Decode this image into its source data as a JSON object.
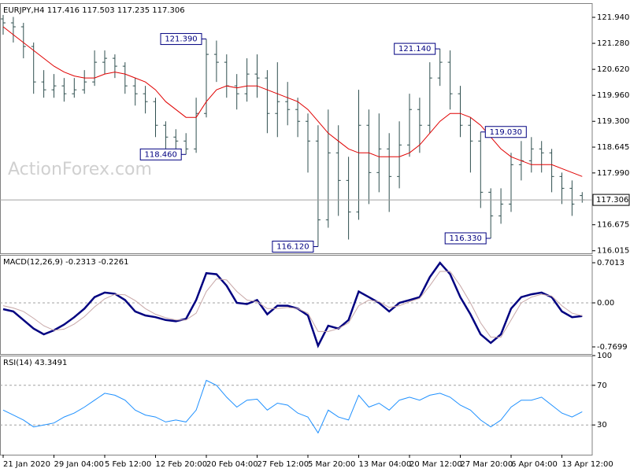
{
  "chart_data": [
    {
      "type": "ohlc",
      "title": "EURJPY,H4 117.416 117.503 117.235 117.306",
      "watermark": "ActionForex.com",
      "color": "#2f4f4f",
      "open": [
        121.9,
        121.8,
        121.7,
        121.2,
        120.3,
        120.1,
        120.2,
        120.0,
        120.1,
        120.3,
        120.8,
        120.9,
        120.7,
        120.2,
        120.0,
        119.8,
        119.2,
        118.9,
        118.8,
        118.6,
        119.5,
        121.0,
        120.8,
        120.2,
        120.0,
        120.5,
        120.4,
        119.5,
        119.8,
        119.6,
        119.3,
        118.8,
        116.8,
        118.5,
        117.8,
        117.0,
        119.2,
        118.0,
        118.6,
        117.9,
        118.7,
        119.6,
        119.2,
        120.4,
        120.8,
        120.0,
        119.2,
        118.8,
        117.5,
        116.9,
        117.2,
        118.2,
        118.3,
        118.6,
        118.5,
        117.9,
        117.6,
        117.416
      ],
      "high": [
        122.0,
        121.95,
        121.8,
        121.3,
        120.6,
        120.5,
        120.4,
        120.4,
        120.6,
        121.1,
        121.1,
        121.0,
        120.8,
        120.4,
        120.2,
        119.9,
        119.3,
        119.1,
        119.0,
        119.9,
        121.39,
        121.35,
        121.0,
        120.5,
        120.9,
        121.0,
        120.6,
        120.8,
        120.3,
        119.9,
        119.5,
        119.2,
        119.6,
        119.2,
        118.4,
        120.1,
        119.6,
        119.5,
        119.0,
        119.3,
        120.0,
        119.9,
        120.8,
        121.14,
        121.1,
        120.2,
        119.4,
        119.03,
        117.6,
        117.6,
        118.5,
        118.8,
        118.9,
        118.8,
        118.6,
        118.0,
        117.8,
        117.503
      ],
      "low": [
        121.5,
        121.3,
        120.9,
        120.0,
        119.9,
        119.9,
        119.8,
        119.9,
        120.0,
        120.2,
        120.5,
        120.4,
        120.0,
        119.7,
        119.5,
        118.9,
        118.6,
        118.5,
        118.46,
        118.5,
        119.4,
        120.3,
        119.9,
        119.6,
        119.8,
        119.9,
        119.0,
        118.9,
        119.2,
        118.9,
        118.0,
        116.12,
        116.6,
        116.9,
        116.3,
        116.8,
        117.2,
        117.5,
        117.0,
        117.6,
        118.4,
        118.5,
        119.0,
        120.2,
        119.6,
        118.9,
        118.0,
        117.1,
        116.33,
        116.7,
        117.0,
        117.8,
        118.0,
        118.0,
        117.5,
        117.2,
        116.9,
        117.235
      ],
      "close": [
        121.8,
        121.7,
        121.2,
        120.3,
        120.1,
        120.2,
        120.0,
        120.1,
        120.3,
        120.8,
        120.9,
        120.7,
        120.2,
        120.0,
        119.8,
        119.2,
        118.9,
        118.8,
        118.6,
        119.5,
        121.0,
        120.8,
        120.2,
        120.0,
        120.5,
        120.4,
        119.5,
        119.8,
        119.6,
        119.3,
        118.8,
        116.8,
        118.5,
        117.8,
        117.0,
        119.2,
        118.0,
        118.6,
        117.9,
        118.7,
        119.6,
        119.2,
        120.4,
        120.8,
        120.0,
        119.2,
        118.8,
        117.5,
        116.9,
        117.2,
        118.2,
        118.3,
        118.6,
        118.5,
        117.9,
        117.6,
        117.2,
        117.306
      ],
      "ma": {
        "color": "#e00000",
        "values": [
          121.7,
          121.5,
          121.3,
          121.1,
          120.9,
          120.7,
          120.55,
          120.45,
          120.4,
          120.4,
          120.5,
          120.55,
          120.5,
          120.4,
          120.3,
          120.1,
          119.8,
          119.6,
          119.4,
          119.4,
          119.8,
          120.1,
          120.2,
          120.15,
          120.2,
          120.2,
          120.1,
          120.0,
          119.9,
          119.8,
          119.6,
          119.3,
          119.0,
          118.8,
          118.6,
          118.5,
          118.5,
          118.4,
          118.4,
          118.4,
          118.5,
          118.7,
          119.0,
          119.3,
          119.5,
          119.5,
          119.4,
          119.2,
          118.9,
          118.6,
          118.4,
          118.3,
          118.2,
          118.2,
          118.2,
          118.1,
          118.0,
          117.9
        ]
      },
      "last_price": {
        "value": 117.306,
        "label": "117.306"
      },
      "annotations": [
        {
          "bar": 20,
          "value": 121.39,
          "label": "121.390",
          "side": "left"
        },
        {
          "bar": 18,
          "value": 118.46,
          "label": "118.460",
          "side": "left"
        },
        {
          "bar": 31,
          "value": 116.12,
          "label": "116.120",
          "side": "left"
        },
        {
          "bar": 43,
          "value": 121.14,
          "label": "121.140",
          "side": "left"
        },
        {
          "bar": 47,
          "value": 119.03,
          "label": "119.030",
          "side": "right"
        },
        {
          "bar": 48,
          "value": 116.33,
          "label": "116.330",
          "side": "left"
        }
      ],
      "ylim": [
        115.95,
        122.3
      ],
      "yticks": [
        {
          "value": 121.94,
          "label": "121.940"
        },
        {
          "value": 121.28,
          "label": "121.280"
        },
        {
          "value": 120.62,
          "label": "120.620"
        },
        {
          "value": 119.96,
          "label": "119.960"
        },
        {
          "value": 119.3,
          "label": "119.300"
        },
        {
          "value": 118.645,
          "label": "118.645"
        },
        {
          "value": 117.99,
          "label": "117.990"
        },
        {
          "value": 116.675,
          "label": "116.675"
        },
        {
          "value": 116.015,
          "label": "116.015"
        }
      ],
      "grid": false
    },
    {
      "type": "line",
      "title": "MACD(12,26,9) -0.2313 -0.2261",
      "series": [
        {
          "color": "#000080",
          "width": 2.5,
          "values": [
            -0.11,
            -0.15,
            -0.3,
            -0.45,
            -0.55,
            -0.48,
            -0.38,
            -0.25,
            -0.1,
            0.1,
            0.18,
            0.16,
            0.05,
            -0.15,
            -0.22,
            -0.25,
            -0.3,
            -0.32,
            -0.28,
            0.05,
            0.52,
            0.5,
            0.3,
            0.0,
            -0.02,
            0.05,
            -0.2,
            -0.05,
            -0.05,
            -0.1,
            -0.22,
            -0.75,
            -0.4,
            -0.45,
            -0.3,
            0.2,
            0.1,
            0.0,
            -0.15,
            0.0,
            0.05,
            0.1,
            0.45,
            0.7,
            0.5,
            0.1,
            -0.2,
            -0.55,
            -0.7,
            -0.55,
            -0.1,
            0.1,
            0.15,
            0.18,
            0.1,
            -0.15,
            -0.25,
            -0.2313
          ]
        },
        {
          "color": "#c8a8a8",
          "width": 1,
          "values": [
            -0.05,
            -0.09,
            -0.15,
            -0.27,
            -0.4,
            -0.48,
            -0.46,
            -0.37,
            -0.24,
            -0.07,
            0.07,
            0.15,
            0.14,
            0.04,
            -0.1,
            -0.2,
            -0.26,
            -0.3,
            -0.3,
            -0.18,
            0.2,
            0.42,
            0.4,
            0.2,
            0.05,
            0.02,
            -0.1,
            -0.1,
            -0.08,
            -0.1,
            -0.18,
            -0.5,
            -0.5,
            -0.45,
            -0.35,
            -0.05,
            0.05,
            0.02,
            -0.08,
            -0.05,
            0.02,
            0.08,
            0.3,
            0.55,
            0.55,
            0.3,
            0.0,
            -0.35,
            -0.6,
            -0.6,
            -0.3,
            0.0,
            0.1,
            0.15,
            0.12,
            -0.05,
            -0.18,
            -0.2261
          ]
        }
      ],
      "ylim": [
        -0.894,
        0.839
      ],
      "yticks": [
        0.7013,
        {
          "value": 0,
          "label": "0.00"
        },
        -0.7699
      ],
      "grid": "dashed"
    },
    {
      "type": "line",
      "title": "RSI(14) 43.3491",
      "series": [
        {
          "color": "#1e90ff",
          "width": 1,
          "values": [
            45,
            40,
            35,
            28,
            30,
            32,
            38,
            42,
            48,
            55,
            62,
            60,
            55,
            45,
            40,
            38,
            33,
            35,
            33,
            45,
            75,
            70,
            58,
            48,
            55,
            56,
            45,
            52,
            50,
            42,
            38,
            22,
            45,
            38,
            35,
            60,
            48,
            52,
            45,
            55,
            58,
            55,
            60,
            62,
            58,
            50,
            45,
            35,
            28,
            35,
            48,
            55,
            55,
            58,
            50,
            42,
            38,
            43.3491
          ]
        }
      ],
      "ylim": [
        0,
        100
      ],
      "yticks": [
        100,
        70,
        30
      ],
      "grid": "dashed",
      "categories": [
        "21 Jan 2020",
        null,
        null,
        null,
        null,
        "29 Jan 04:00",
        null,
        null,
        null,
        null,
        "5 Feb 12:00",
        null,
        null,
        null,
        null,
        "12 Feb 20:00",
        null,
        null,
        null,
        null,
        "20 Feb 04:00",
        null,
        null,
        null,
        null,
        "27 Feb 12:00",
        null,
        null,
        null,
        null,
        "5 Mar 20:00",
        null,
        null,
        null,
        null,
        "13 Mar 04:00",
        null,
        null,
        null,
        null,
        "20 Mar 12:00",
        null,
        null,
        null,
        null,
        "27 Mar 20:00",
        null,
        null,
        null,
        null,
        "6 Apr 04:00",
        null,
        null,
        null,
        null,
        "13 Apr 12:00",
        null,
        null
      ]
    }
  ]
}
